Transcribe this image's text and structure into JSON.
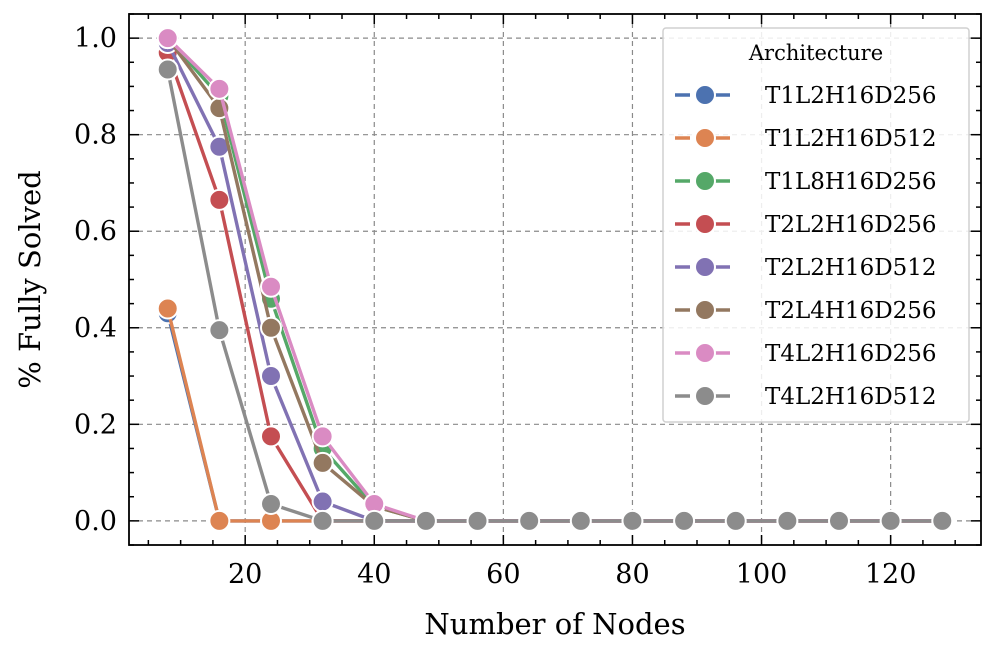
{
  "chart_data": {
    "type": "line",
    "title": "",
    "xlabel": "Number of Nodes",
    "ylabel": "% Fully Solved",
    "xlim": [
      2,
      134
    ],
    "ylim": [
      -0.05,
      1.05
    ],
    "xticks": [
      20,
      40,
      60,
      80,
      100,
      120
    ],
    "xtick_labels": [
      "20",
      "40",
      "60",
      "80",
      "100",
      "120"
    ],
    "yticks": [
      0.0,
      0.2,
      0.4,
      0.6,
      0.8,
      1.0
    ],
    "ytick_labels": [
      "0.0",
      "0.2",
      "0.4",
      "0.6",
      "0.8",
      "1.0"
    ],
    "x_minor_step": 5,
    "y_minor_step": 0.05,
    "grid": true,
    "legend": {
      "title": "Architecture",
      "position": "top-right"
    },
    "x": [
      8,
      16,
      24,
      32,
      40,
      48,
      56,
      64,
      72,
      80,
      88,
      96,
      104,
      112,
      120,
      128
    ],
    "series": [
      {
        "name": "T1L2H16D256",
        "color": "#4c72b0",
        "values": [
          0.43,
          0.0,
          0.0,
          0.0,
          0.0,
          0.0,
          0.0,
          0.0,
          0.0,
          0.0,
          0.0,
          0.0,
          0.0,
          0.0,
          0.0,
          0.0
        ]
      },
      {
        "name": "T1L2H16D512",
        "color": "#dd8452",
        "values": [
          0.44,
          0.0,
          0.0,
          0.0,
          0.0,
          0.0,
          0.0,
          0.0,
          0.0,
          0.0,
          0.0,
          0.0,
          0.0,
          0.0,
          0.0,
          0.0
        ]
      },
      {
        "name": "T1L8H16D256",
        "color": "#55a868",
        "values": [
          1.0,
          0.88,
          0.46,
          0.15,
          0.03,
          0.0,
          0.0,
          0.0,
          0.0,
          0.0,
          0.0,
          0.0,
          0.0,
          0.0,
          0.0,
          0.0
        ]
      },
      {
        "name": "T2L2H16D256",
        "color": "#c44e52",
        "values": [
          0.97,
          0.665,
          0.175,
          0.0,
          0.0,
          0.0,
          0.0,
          0.0,
          0.0,
          0.0,
          0.0,
          0.0,
          0.0,
          0.0,
          0.0,
          0.0
        ]
      },
      {
        "name": "T2L2H16D512",
        "color": "#8172b3",
        "values": [
          0.99,
          0.775,
          0.3,
          0.04,
          0.0,
          0.0,
          0.0,
          0.0,
          0.0,
          0.0,
          0.0,
          0.0,
          0.0,
          0.0,
          0.0,
          0.0
        ]
      },
      {
        "name": "T2L4H16D256",
        "color": "#937860",
        "values": [
          1.0,
          0.855,
          0.4,
          0.12,
          0.03,
          0.0,
          0.0,
          0.0,
          0.0,
          0.0,
          0.0,
          0.0,
          0.0,
          0.0,
          0.0,
          0.0
        ]
      },
      {
        "name": "T4L2H16D256",
        "color": "#da8bc3",
        "values": [
          1.0,
          0.895,
          0.485,
          0.175,
          0.035,
          0.0,
          0.0,
          0.0,
          0.0,
          0.0,
          0.0,
          0.0,
          0.0,
          0.0,
          0.0,
          0.0
        ]
      },
      {
        "name": "T4L2H16D512",
        "color": "#8c8c8c",
        "values": [
          0.935,
          0.395,
          0.035,
          0.0,
          0.0,
          0.0,
          0.0,
          0.0,
          0.0,
          0.0,
          0.0,
          0.0,
          0.0,
          0.0,
          0.0,
          0.0
        ]
      }
    ]
  }
}
